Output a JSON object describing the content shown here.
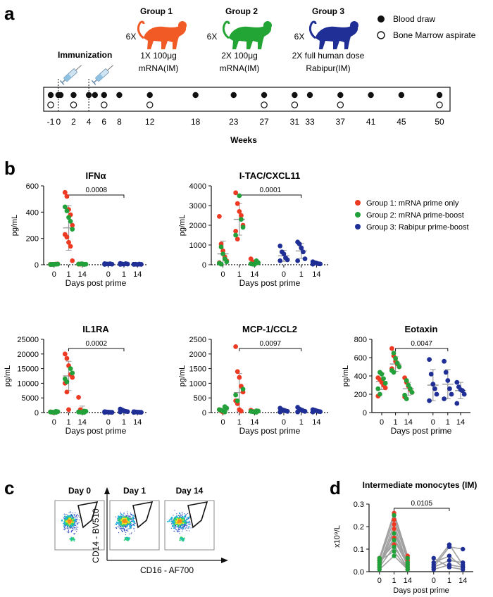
{
  "panel_labels": {
    "a": "a",
    "b": "b",
    "c": "c",
    "d": "d"
  },
  "colors": {
    "group1": "#ee3a23",
    "group2": "#22a03a",
    "group3": "#1f2f96",
    "axis": "#111111",
    "grid": "#999999",
    "error": "#9a9a9a"
  },
  "timeline": {
    "groups": [
      {
        "title": "Group 1",
        "count": "6X",
        "line1": "1X 100μg",
        "line2": "mRNA(IM)",
        "color": "#f15a24"
      },
      {
        "title": "Group 2",
        "count": "6X",
        "line1": "2X 100μg",
        "line2": "mRNA(IM)",
        "color": "#22a535"
      },
      {
        "title": "Group 3",
        "count": "6X",
        "line1": "2X full human dose",
        "line2": "Rabipur(IM)",
        "color": "#1f2f96"
      }
    ],
    "legend": {
      "filled": "Blood draw",
      "open": "Bone Marrow aspirate"
    },
    "immunization_label": "Immunization",
    "xlabel": "Weeks",
    "week_labels": [
      "-1",
      "0",
      "2",
      "4",
      "6",
      "8",
      "12",
      "18",
      "23",
      "27",
      "31",
      "33",
      "37",
      "41",
      "45",
      "50"
    ],
    "blood_draws": [
      -1,
      0,
      0.3,
      2,
      4,
      4.8,
      6,
      8,
      12,
      18,
      23,
      27,
      31,
      33,
      37,
      41,
      45,
      50
    ],
    "marrow": [
      -1,
      2,
      6,
      12,
      27,
      31,
      37,
      50
    ],
    "immunizations": [
      0,
      4
    ]
  },
  "cytokine_legend": [
    "Group 1: mRNA prime only",
    "Group 2: mRNA prime-boost",
    "Group 3: Rabipur prime-boost"
  ],
  "chart_data": [
    {
      "id": "ifna",
      "type": "scatter",
      "title": "IFNα",
      "ylabel": "pg/mL",
      "xlabel": "Days post prime",
      "ylim": [
        0,
        600
      ],
      "yticks": [
        0,
        200,
        400,
        600
      ],
      "ytick_labels": [
        "0",
        "200",
        "400",
        "600"
      ],
      "categories": [
        "0",
        "1",
        "14",
        "0",
        "1",
        "14"
      ],
      "pvalue": "0.0008",
      "bracket": [
        1,
        4
      ],
      "cols": [
        {
          "red": [
            2,
            3,
            4,
            5,
            6,
            3
          ],
          "green": [
            2,
            3,
            4,
            5,
            2,
            3
          ],
          "blue": [],
          "mean": null,
          "sd": null
        },
        {
          "red": [
            550,
            520,
            420,
            380,
            300,
            230,
            210,
            170,
            140,
            30
          ],
          "green": [
            440,
            410,
            360,
            330,
            270
          ],
          "blue": [],
          "mean": 280,
          "sd": 170
        },
        {
          "red": [
            4,
            5,
            6
          ],
          "green": [
            3,
            4,
            5,
            6,
            7,
            3
          ],
          "blue": [],
          "mean": null,
          "sd": null
        },
        {
          "red": [],
          "green": [],
          "blue": [
            8,
            6,
            5,
            7,
            4,
            3
          ],
          "mean": null,
          "sd": null
        },
        {
          "red": [],
          "green": [],
          "blue": [
            10,
            6,
            4,
            8,
            5,
            3
          ],
          "mean": null,
          "sd": null
        },
        {
          "red": [],
          "green": [],
          "blue": [
            3,
            4,
            2,
            5,
            3,
            4
          ],
          "mean": null,
          "sd": null
        }
      ]
    },
    {
      "id": "itac",
      "type": "scatter",
      "title": "I-TAC/CXCL11",
      "ylabel": "pg/mL",
      "xlabel": "Days post prime",
      "ylim": [
        0,
        4000
      ],
      "yticks": [
        0,
        1000,
        2000,
        3000,
        4000
      ],
      "ytick_labels": [
        "0",
        "1000",
        "2000",
        "3000",
        "4000"
      ],
      "categories": [
        "0",
        "1",
        "14",
        "0",
        "1",
        "14"
      ],
      "pvalue": "0.0001",
      "bracket": [
        1,
        4
      ],
      "cols": [
        {
          "red": [
            2450,
            1050,
            700,
            400,
            200,
            100
          ],
          "green": [
            900,
            550,
            300,
            150,
            80,
            30
          ],
          "blue": [],
          "mean": 550,
          "sd": 650
        },
        {
          "red": [
            3650,
            3100,
            2700,
            2500,
            2000,
            1700,
            1300
          ],
          "green": [
            3500,
            2300,
            1900,
            1500
          ],
          "blue": [],
          "mean": 2300,
          "sd": 800
        },
        {
          "red": [
            300,
            150,
            80
          ],
          "green": [
            200,
            100,
            50,
            30,
            20
          ],
          "blue": [],
          "mean": 100,
          "sd": 100
        },
        {
          "red": [],
          "green": [],
          "blue": [
            950,
            650,
            550,
            350,
            250,
            200
          ],
          "mean": 450,
          "sd": 280
        },
        {
          "red": [],
          "green": [],
          "blue": [
            1150,
            1050,
            850,
            650,
            300,
            200
          ],
          "mean": 700,
          "sd": 380
        },
        {
          "red": [],
          "green": [],
          "blue": [
            150,
            100,
            80,
            50,
            40,
            30
          ],
          "mean": 60,
          "sd": 50
        }
      ]
    },
    {
      "id": "il1ra",
      "type": "scatter",
      "title": "IL1RA",
      "ylabel": "pg/mL",
      "xlabel": "Days post prime",
      "ylim": [
        0,
        25000
      ],
      "yticks": [
        0,
        5000,
        10000,
        15000,
        20000,
        25000
      ],
      "ytick_labels": [
        "0",
        "5000",
        "10000",
        "15000",
        "20000",
        "25000"
      ],
      "categories": [
        "0",
        "1",
        "14",
        "0",
        "1",
        "14"
      ],
      "pvalue": "0.0002",
      "bracket": [
        1,
        4
      ],
      "cols": [
        {
          "red": [
            200,
            100,
            50
          ],
          "green": [
            400,
            300,
            200,
            150,
            100,
            50
          ],
          "blue": [],
          "mean": 150,
          "sd": 200
        },
        {
          "red": [
            20000,
            18500,
            16000,
            13000,
            12000,
            10000,
            7000,
            1000
          ],
          "green": [
            15000,
            13500,
            11500,
            10500
          ],
          "blue": [],
          "mean": 12500,
          "sd": 5000
        },
        {
          "red": [
            5200,
            1000,
            300
          ],
          "green": [
            500,
            400,
            200,
            150,
            100,
            50
          ],
          "blue": [],
          "mean": 700,
          "sd": 1500
        },
        {
          "red": [],
          "green": [],
          "blue": [
            300,
            200,
            150,
            100,
            80,
            50
          ],
          "mean": 120,
          "sd": 80
        },
        {
          "red": [],
          "green": [],
          "blue": [
            1200,
            900,
            600,
            400,
            300,
            200
          ],
          "mean": 550,
          "sd": 350
        },
        {
          "red": [],
          "green": [],
          "blue": [
            300,
            200,
            150,
            100,
            80,
            50
          ],
          "mean": 120,
          "sd": 80
        }
      ]
    },
    {
      "id": "mcp1",
      "type": "scatter",
      "title": "MCP-1/CCL2",
      "ylabel": "pg/mL",
      "xlabel": "Days post prime",
      "ylim": [
        0,
        2500
      ],
      "yticks": [
        0,
        500,
        1000,
        1500,
        2000,
        2500
      ],
      "ytick_labels": [
        "0",
        "500",
        "1000",
        "1500",
        "2000",
        "2500"
      ],
      "categories": [
        "0",
        "1",
        "14",
        "0",
        "1",
        "14"
      ],
      "pvalue": "0.0097",
      "bracket": [
        1,
        4
      ],
      "cols": [
        {
          "red": [
            100,
            50,
            20
          ],
          "green": [
            200,
            150,
            100,
            80,
            50,
            20
          ],
          "blue": [],
          "mean": 80,
          "sd": 60
        },
        {
          "red": [
            2250,
            1400,
            1200,
            900,
            700,
            400,
            300,
            100,
            50
          ],
          "green": [
            800,
            600,
            400
          ],
          "blue": [],
          "mean": 680,
          "sd": 650
        },
        {
          "red": [
            80,
            40,
            20
          ],
          "green": [
            60,
            50,
            40,
            30,
            20,
            10
          ],
          "blue": [],
          "mean": 40,
          "sd": 30
        },
        {
          "red": [],
          "green": [],
          "blue": [
            150,
            100,
            80,
            60,
            40,
            20
          ],
          "mean": 70,
          "sd": 50
        },
        {
          "red": [],
          "green": [],
          "blue": [
            180,
            120,
            90,
            60,
            40,
            20
          ],
          "mean": 80,
          "sd": 60
        },
        {
          "red": [],
          "green": [],
          "blue": [
            100,
            80,
            60,
            40,
            30,
            20
          ],
          "mean": 50,
          "sd": 30
        }
      ]
    },
    {
      "id": "eotaxin",
      "type": "scatter",
      "title": "Eotaxin",
      "ylabel": "pg/mL",
      "xlabel": "Days post prime",
      "ylim": [
        0,
        800
      ],
      "yticks": [
        0,
        200,
        400,
        600,
        800
      ],
      "ytick_labels": [
        "0",
        "200",
        "400",
        "600",
        "800"
      ],
      "categories": [
        "0",
        "1",
        "14",
        "0",
        "1",
        "14"
      ],
      "pvalue": "0.0047",
      "bracket": [
        1,
        4
      ],
      "cols": [
        {
          "red": [
            380,
            360,
            330,
            300,
            270,
            180
          ],
          "green": [
            440,
            420,
            370,
            320,
            260,
            200
          ],
          "blue": [],
          "mean": 340,
          "sd": 90
        },
        {
          "red": [
            700,
            620,
            560,
            530,
            500,
            480
          ],
          "green": [
            650,
            590,
            540,
            500,
            460,
            440
          ],
          "blue": [],
          "mean": 530,
          "sd": 80
        },
        {
          "red": [
            380,
            330,
            290,
            250,
            220,
            170
          ],
          "green": [
            350,
            300,
            260,
            220,
            190,
            150
          ],
          "blue": [],
          "mean": 260,
          "sd": 70
        },
        {
          "red": [],
          "green": [],
          "blue": [
            580,
            420,
            310,
            260,
            200,
            130
          ],
          "mean": 300,
          "sd": 170
        },
        {
          "red": [],
          "green": [],
          "blue": [
            560,
            440,
            350,
            260,
            200,
            150
          ],
          "mean": 310,
          "sd": 160
        },
        {
          "red": [],
          "green": [],
          "blue": [
            330,
            280,
            250,
            240,
            200,
            100
          ],
          "mean": 240,
          "sd": 90
        }
      ]
    }
  ],
  "flow": {
    "titles": [
      "Day 0",
      "Day 1",
      "Day 14"
    ],
    "ylabel": "CD14 - BV510",
    "xlabel": "CD16 - AF700"
  },
  "monocytes": {
    "type": "line",
    "title": "Intermediate monocytes (IM)",
    "ylabel": "x10⁹/L",
    "xlabel": "Days post prime",
    "ylim": [
      0,
      0.3
    ],
    "yticks": [
      0,
      0.1,
      0.2,
      0.3
    ],
    "ytick_labels": [
      "0.0",
      "0.1",
      "0.2",
      "0.3"
    ],
    "categories": [
      "0",
      "1",
      "14",
      "0",
      "1",
      "14"
    ],
    "pvalue": "0.0105",
    "mrna_subjects": [
      {
        "group": "red",
        "values": [
          0.06,
          0.26,
          0.07
        ]
      },
      {
        "group": "red",
        "values": [
          0.05,
          0.23,
          0.05
        ]
      },
      {
        "group": "red",
        "values": [
          0.03,
          0.21,
          0.03
        ]
      },
      {
        "group": "red",
        "values": [
          0.02,
          0.19,
          0.02
        ]
      },
      {
        "group": "red",
        "values": [
          0.04,
          0.15,
          0.04
        ]
      },
      {
        "group": "red",
        "values": [
          0.05,
          0.12,
          0.01
        ]
      },
      {
        "group": "green",
        "values": [
          0.06,
          0.25,
          0.06
        ]
      },
      {
        "group": "green",
        "values": [
          0.04,
          0.17,
          0.04
        ]
      },
      {
        "group": "green",
        "values": [
          0.03,
          0.14,
          0.03
        ]
      },
      {
        "group": "green",
        "values": [
          0.02,
          0.11,
          0.02
        ]
      },
      {
        "group": "green",
        "values": [
          0.05,
          0.09,
          0.01
        ]
      },
      {
        "group": "green",
        "values": [
          0.01,
          0.07,
          0.01
        ]
      }
    ],
    "rabipur_subjects": [
      {
        "group": "blue",
        "values": [
          0.03,
          0.12,
          0.03
        ]
      },
      {
        "group": "blue",
        "values": [
          0.02,
          0.11,
          0.1
        ]
      },
      {
        "group": "blue",
        "values": [
          0.04,
          0.07,
          0.02
        ]
      },
      {
        "group": "blue",
        "values": [
          0.02,
          0.05,
          0.04
        ]
      },
      {
        "group": "blue",
        "values": [
          0.01,
          0.03,
          0.02
        ]
      },
      {
        "group": "blue",
        "values": [
          0.06,
          0.02,
          0.01
        ]
      }
    ]
  }
}
